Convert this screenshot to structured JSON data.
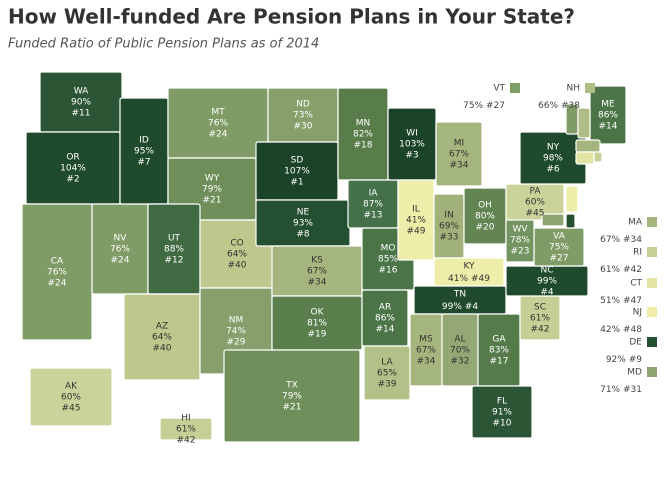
{
  "chart_data": {
    "type": "choropleth",
    "title": "How Well-funded Are Pension Plans in Your State?",
    "subtitle": "Funded Ratio of Public Pension Plans as of 2014",
    "states": [
      {
        "abbr": "WA",
        "value": 90,
        "value_label": "90%",
        "rank": 11,
        "rank_label": "#11",
        "color": "#2b5535"
      },
      {
        "abbr": "OR",
        "value": 104,
        "value_label": "104%",
        "rank": 2,
        "rank_label": "#2",
        "color": "#1f4a2c"
      },
      {
        "abbr": "CA",
        "value": 76,
        "value_label": "76%",
        "rank": 24,
        "rank_label": "#24",
        "color": "#7f9b66"
      },
      {
        "abbr": "NV",
        "value": 76,
        "value_label": "76%",
        "rank": 24,
        "rank_label": "#24",
        "color": "#7f9b66"
      },
      {
        "abbr": "ID",
        "value": 95,
        "value_label": "95%",
        "rank": 7,
        "rank_label": "#7",
        "color": "#1f4a2c"
      },
      {
        "abbr": "MT",
        "value": 76,
        "value_label": "76%",
        "rank": 24,
        "rank_label": "#24",
        "color": "#7f9b66"
      },
      {
        "abbr": "WY",
        "value": 79,
        "value_label": "79%",
        "rank": 21,
        "rank_label": "#21",
        "color": "#6f8f5a"
      },
      {
        "abbr": "UT",
        "value": 88,
        "value_label": "88%",
        "rank": 12,
        "rank_label": "#12",
        "color": "#3f6a42"
      },
      {
        "abbr": "AZ",
        "value": 64,
        "value_label": "64%",
        "rank": 40,
        "rank_label": "#40",
        "color": "#bcc88c"
      },
      {
        "abbr": "CO",
        "value": 64,
        "value_label": "64%",
        "rank": 40,
        "rank_label": "#40",
        "color": "#bcc88c"
      },
      {
        "abbr": "NM",
        "value": 74,
        "value_label": "74%",
        "rank": 29,
        "rank_label": "#29",
        "color": "#869f6b"
      },
      {
        "abbr": "ND",
        "value": 73,
        "value_label": "73%",
        "rank": 30,
        "rank_label": "#30",
        "color": "#869f6b"
      },
      {
        "abbr": "SD",
        "value": 107,
        "value_label": "107%",
        "rank": 1,
        "rank_label": "#1",
        "color": "#1a4327"
      },
      {
        "abbr": "NE",
        "value": 93,
        "value_label": "93%",
        "rank": 8,
        "rank_label": "#8",
        "color": "#254f31"
      },
      {
        "abbr": "KS",
        "value": 67,
        "value_label": "67%",
        "rank": 34,
        "rank_label": "#34",
        "color": "#a4b67d"
      },
      {
        "abbr": "OK",
        "value": 81,
        "value_label": "81%",
        "rank": 19,
        "rank_label": "#19",
        "color": "#5a7f4d"
      },
      {
        "abbr": "TX",
        "value": 79,
        "value_label": "79%",
        "rank": 21,
        "rank_label": "#21",
        "color": "#6f8f5a"
      },
      {
        "abbr": "MN",
        "value": 82,
        "value_label": "82%",
        "rank": 18,
        "rank_label": "#18",
        "color": "#587d4b"
      },
      {
        "abbr": "IA",
        "value": 87,
        "value_label": "87%",
        "rank": 13,
        "rank_label": "#13",
        "color": "#44704a"
      },
      {
        "abbr": "MO",
        "value": 85,
        "value_label": "85%",
        "rank": 16,
        "rank_label": "#16",
        "color": "#4b7547"
      },
      {
        "abbr": "AR",
        "value": 86,
        "value_label": "86%",
        "rank": 14,
        "rank_label": "#14",
        "color": "#4b7547"
      },
      {
        "abbr": "LA",
        "value": 65,
        "value_label": "65%",
        "rank": 39,
        "rank_label": "#39",
        "color": "#b2c187"
      },
      {
        "abbr": "WI",
        "value": 103,
        "value_label": "103%",
        "rank": 3,
        "rank_label": "#3",
        "color": "#1a4327"
      },
      {
        "abbr": "IL",
        "value": 41,
        "value_label": "41%",
        "rank": 49,
        "rank_label": "#49",
        "color": "#eeeeaa"
      },
      {
        "abbr": "MI",
        "value": 67,
        "value_label": "67%",
        "rank": 34,
        "rank_label": "#34",
        "color": "#a4b67d"
      },
      {
        "abbr": "IN",
        "value": 69,
        "value_label": "69%",
        "rank": 33,
        "rank_label": "#33",
        "color": "#a0b27a"
      },
      {
        "abbr": "OH",
        "value": 80,
        "value_label": "80%",
        "rank": 20,
        "rank_label": "#20",
        "color": "#628553"
      },
      {
        "abbr": "KY",
        "value": 41,
        "value_label": "41%",
        "rank": 49,
        "rank_label": "#49",
        "color": "#eeeeaa"
      },
      {
        "abbr": "TN",
        "value": 99,
        "value_label": "99%",
        "rank": 4,
        "rank_label": "#4",
        "color": "#1f4a2c"
      },
      {
        "abbr": "MS",
        "value": 67,
        "value_label": "67%",
        "rank": 34,
        "rank_label": "#34",
        "color": "#a4b67d"
      },
      {
        "abbr": "AL",
        "value": 70,
        "value_label": "70%",
        "rank": 32,
        "rank_label": "#32",
        "color": "#93a874"
      },
      {
        "abbr": "GA",
        "value": 83,
        "value_label": "83%",
        "rank": 17,
        "rank_label": "#17",
        "color": "#557b4a"
      },
      {
        "abbr": "FL",
        "value": 91,
        "value_label": "91%",
        "rank": 10,
        "rank_label": "#10",
        "color": "#2b5535"
      },
      {
        "abbr": "SC",
        "value": 61,
        "value_label": "61%",
        "rank": 42,
        "rank_label": "#42",
        "color": "#c6cf95"
      },
      {
        "abbr": "NC",
        "value": 99,
        "value_label": "99%",
        "rank": 4,
        "rank_label": "#4",
        "color": "#1f4a2c"
      },
      {
        "abbr": "VA",
        "value": 75,
        "value_label": "75%",
        "rank": 27,
        "rank_label": "#27",
        "color": "#7f9b66"
      },
      {
        "abbr": "WV",
        "value": 78,
        "value_label": "78%",
        "rank": 23,
        "rank_label": "#23",
        "color": "#739360"
      },
      {
        "abbr": "PA",
        "value": 60,
        "value_label": "60%",
        "rank": 45,
        "rank_label": "#45",
        "color": "#cbd39a"
      },
      {
        "abbr": "NY",
        "value": 98,
        "value_label": "98%",
        "rank": 6,
        "rank_label": "#6",
        "color": "#1f4a2c"
      },
      {
        "abbr": "ME",
        "value": 86,
        "value_label": "86%",
        "rank": 14,
        "rank_label": "#14",
        "color": "#4b7547"
      },
      {
        "abbr": "AK",
        "value": 60,
        "value_label": "60%",
        "rank": 45,
        "rank_label": "#45",
        "color": "#cbd39a"
      },
      {
        "abbr": "HI",
        "value": 61,
        "value_label": "61%",
        "rank": 42,
        "rank_label": "#42",
        "color": "#c6cf95"
      },
      {
        "abbr": "VT",
        "value": 75,
        "value_label": "75%",
        "rank": 27,
        "rank_label": "#27",
        "color": "#7f9b66"
      },
      {
        "abbr": "NH",
        "value": 66,
        "value_label": "66%",
        "rank": 38,
        "rank_label": "#38",
        "color": "#aebd84"
      },
      {
        "abbr": "MA",
        "value": 67,
        "value_label": "67%",
        "rank": 34,
        "rank_label": "#34",
        "color": "#a4b67d"
      },
      {
        "abbr": "RI",
        "value": 61,
        "value_label": "61%",
        "rank": 42,
        "rank_label": "#42",
        "color": "#c6cf95"
      },
      {
        "abbr": "CT",
        "value": 51,
        "value_label": "51%",
        "rank": 47,
        "rank_label": "#47",
        "color": "#e2e5a4"
      },
      {
        "abbr": "NJ",
        "value": 42,
        "value_label": "42%",
        "rank": 48,
        "rank_label": "#48",
        "color": "#eeeeaa"
      },
      {
        "abbr": "DE",
        "value": 92,
        "value_label": "92%",
        "rank": 9,
        "rank_label": "#9",
        "color": "#254f31"
      },
      {
        "abbr": "MD",
        "value": 71,
        "value_label": "71%",
        "rank": 31,
        "rank_label": "#31",
        "color": "#8fa571"
      }
    ]
  }
}
